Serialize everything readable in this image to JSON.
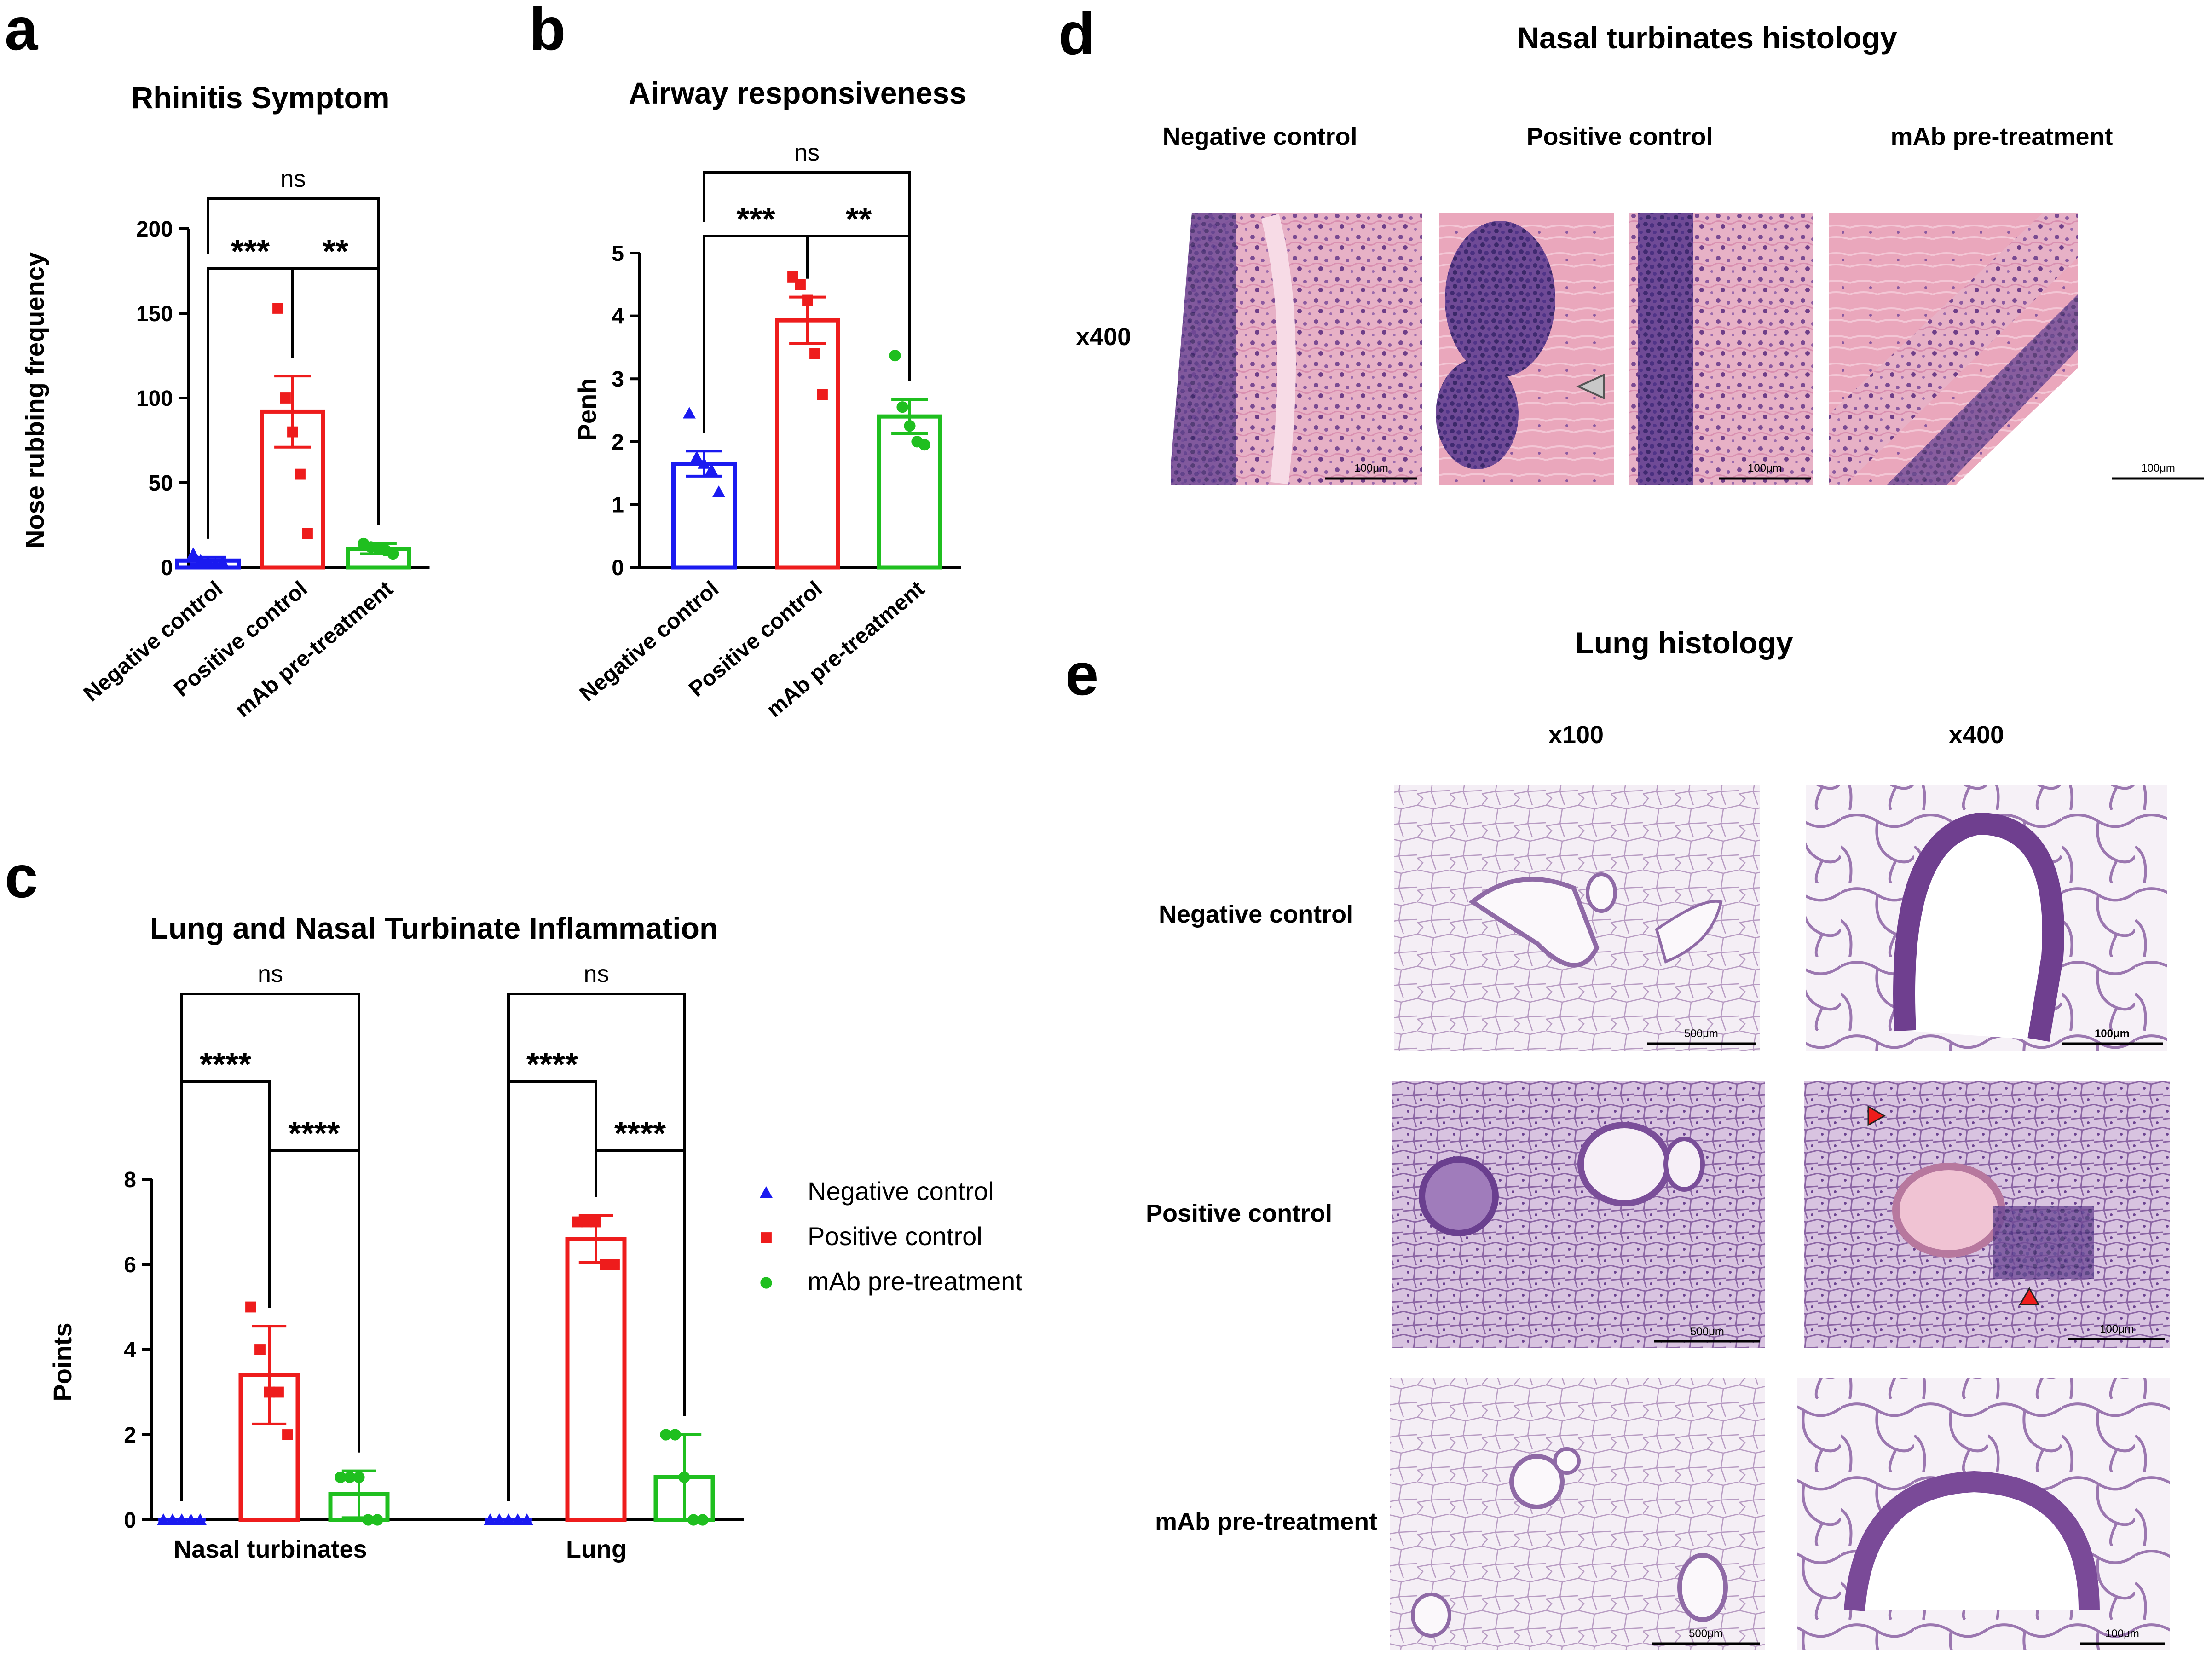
{
  "panel_labels": {
    "a": "a",
    "b": "b",
    "c": "c",
    "d": "d",
    "e": "e"
  },
  "colors": {
    "negative": "#1a1af0",
    "positive": "#ee1c1c",
    "mab": "#1fbf1f",
    "scalebar": "#000000",
    "he_purple": "#7b4a8f",
    "he_pink": "#e8a7bd"
  },
  "chart_data": [
    {
      "id": "a",
      "type": "bar",
      "title": "Rhinitis Symptom",
      "xlabel": "",
      "ylabel": "Nose rubbing frequency",
      "ylim": [
        0,
        200
      ],
      "yticks": [
        0,
        50,
        100,
        150,
        200
      ],
      "categories": [
        "Negative control",
        "Positive control",
        "mAb pre-treatment"
      ],
      "values": [
        4,
        92,
        11
      ],
      "sem": [
        2,
        21,
        3
      ],
      "points": [
        [
          8,
          4,
          3,
          2,
          3
        ],
        [
          153,
          100,
          80,
          55,
          20
        ],
        [
          14,
          12,
          11,
          10,
          8
        ]
      ],
      "markers": [
        "triangle",
        "square",
        "circle"
      ],
      "comparisons": [
        {
          "from": 0,
          "to": 1,
          "label": "***"
        },
        {
          "from": 1,
          "to": 2,
          "label": "**"
        },
        {
          "from": 0,
          "to": 2,
          "label": "ns"
        }
      ]
    },
    {
      "id": "b",
      "type": "bar",
      "title": "Airway responsiveness",
      "xlabel": "",
      "ylabel": "Penh",
      "ylim": [
        0,
        5
      ],
      "yticks": [
        0,
        1,
        2,
        3,
        4,
        5
      ],
      "categories": [
        "Negative control",
        "Positive control",
        "mAb pre-treatment"
      ],
      "values": [
        1.65,
        3.93,
        2.4
      ],
      "sem": [
        0.2,
        0.37,
        0.27
      ],
      "points": [
        [
          2.45,
          1.75,
          1.65,
          1.55,
          1.2
        ],
        [
          4.62,
          4.5,
          4.25,
          3.4,
          2.75
        ],
        [
          3.37,
          2.55,
          2.25,
          2.0,
          1.95
        ]
      ],
      "markers": [
        "triangle",
        "square",
        "circle"
      ],
      "comparisons": [
        {
          "from": 0,
          "to": 1,
          "label": "***"
        },
        {
          "from": 1,
          "to": 2,
          "label": "**"
        },
        {
          "from": 0,
          "to": 2,
          "label": "ns"
        }
      ]
    },
    {
      "id": "c",
      "type": "bar",
      "title": "Lung and Nasal Turbinate Inflammation",
      "xlabel": "",
      "ylabel": "Points",
      "ylim": [
        0,
        8
      ],
      "yticks": [
        0,
        2,
        4,
        6,
        8
      ],
      "groups": [
        "Nasal turbinates",
        "Lung"
      ],
      "series": [
        {
          "name": "Negative control",
          "marker": "triangle",
          "values": [
            0,
            0
          ],
          "sd": [
            0,
            0
          ],
          "points": [
            [
              0,
              0,
              0,
              0,
              0
            ],
            [
              0,
              0,
              0,
              0,
              0
            ]
          ]
        },
        {
          "name": "Positive control",
          "marker": "square",
          "values": [
            3.4,
            6.6
          ],
          "sd": [
            1.15,
            0.55
          ],
          "points": [
            [
              5,
              4,
              3,
              3,
              2
            ],
            [
              7,
              7,
              7,
              6,
              6
            ]
          ]
        },
        {
          "name": "mAb pre-treatment",
          "marker": "circle",
          "values": [
            0.6,
            1.0
          ],
          "sd": [
            0.55,
            1.0
          ],
          "points": [
            [
              1,
              1,
              1,
              0,
              0
            ],
            [
              2,
              2,
              1,
              0,
              0
            ]
          ]
        }
      ],
      "comparisons": [
        {
          "group": 0,
          "from": 0,
          "to": 1,
          "label": "****"
        },
        {
          "group": 0,
          "from": 1,
          "to": 2,
          "label": "****"
        },
        {
          "group": 0,
          "from": 0,
          "to": 2,
          "label": "ns"
        },
        {
          "group": 1,
          "from": 0,
          "to": 1,
          "label": "****"
        },
        {
          "group": 1,
          "from": 1,
          "to": 2,
          "label": "****"
        },
        {
          "group": 1,
          "from": 0,
          "to": 2,
          "label": "ns"
        }
      ],
      "legend_position": "right"
    }
  ],
  "panel_d": {
    "title": "Nasal turbinates histology",
    "columns": [
      "Negative control",
      "Positive control",
      "mAb pre-treatment"
    ],
    "magnification": "x400",
    "scalebars": [
      "100μm",
      "100μm",
      "100μm"
    ]
  },
  "panel_e": {
    "title": "Lung histology",
    "columns": [
      "x100",
      "x400"
    ],
    "rows": [
      "Negative control",
      "Positive control",
      "mAb pre-treatment"
    ],
    "scalebars_x100": [
      "500μm",
      "500μm",
      "500μm"
    ],
    "scalebars_x400": [
      "100μm",
      "100μm",
      "100μm"
    ]
  }
}
